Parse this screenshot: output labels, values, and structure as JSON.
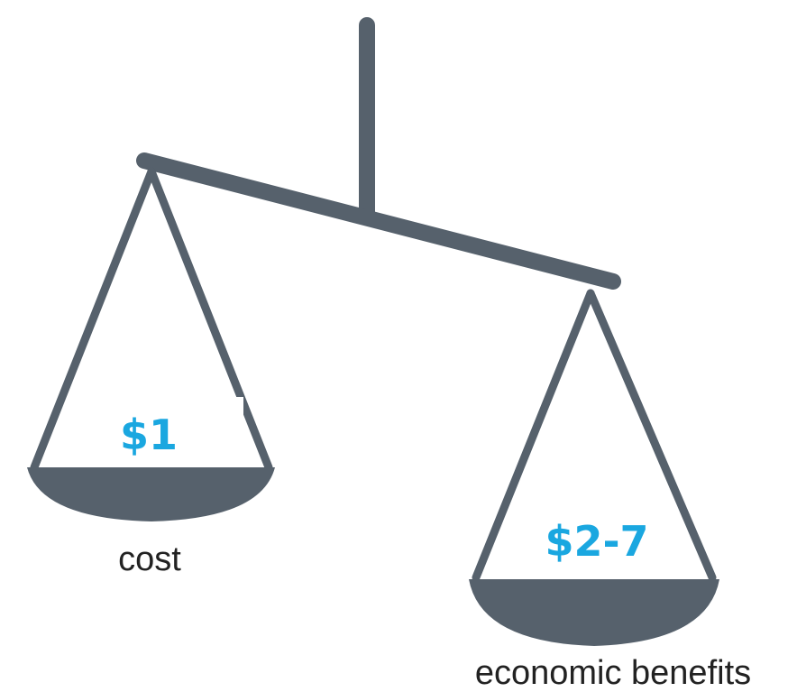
{
  "left_pan": {
    "value": "$1",
    "label": "cost"
  },
  "right_pan": {
    "value": "$2-7",
    "label": "economic benefits"
  }
}
